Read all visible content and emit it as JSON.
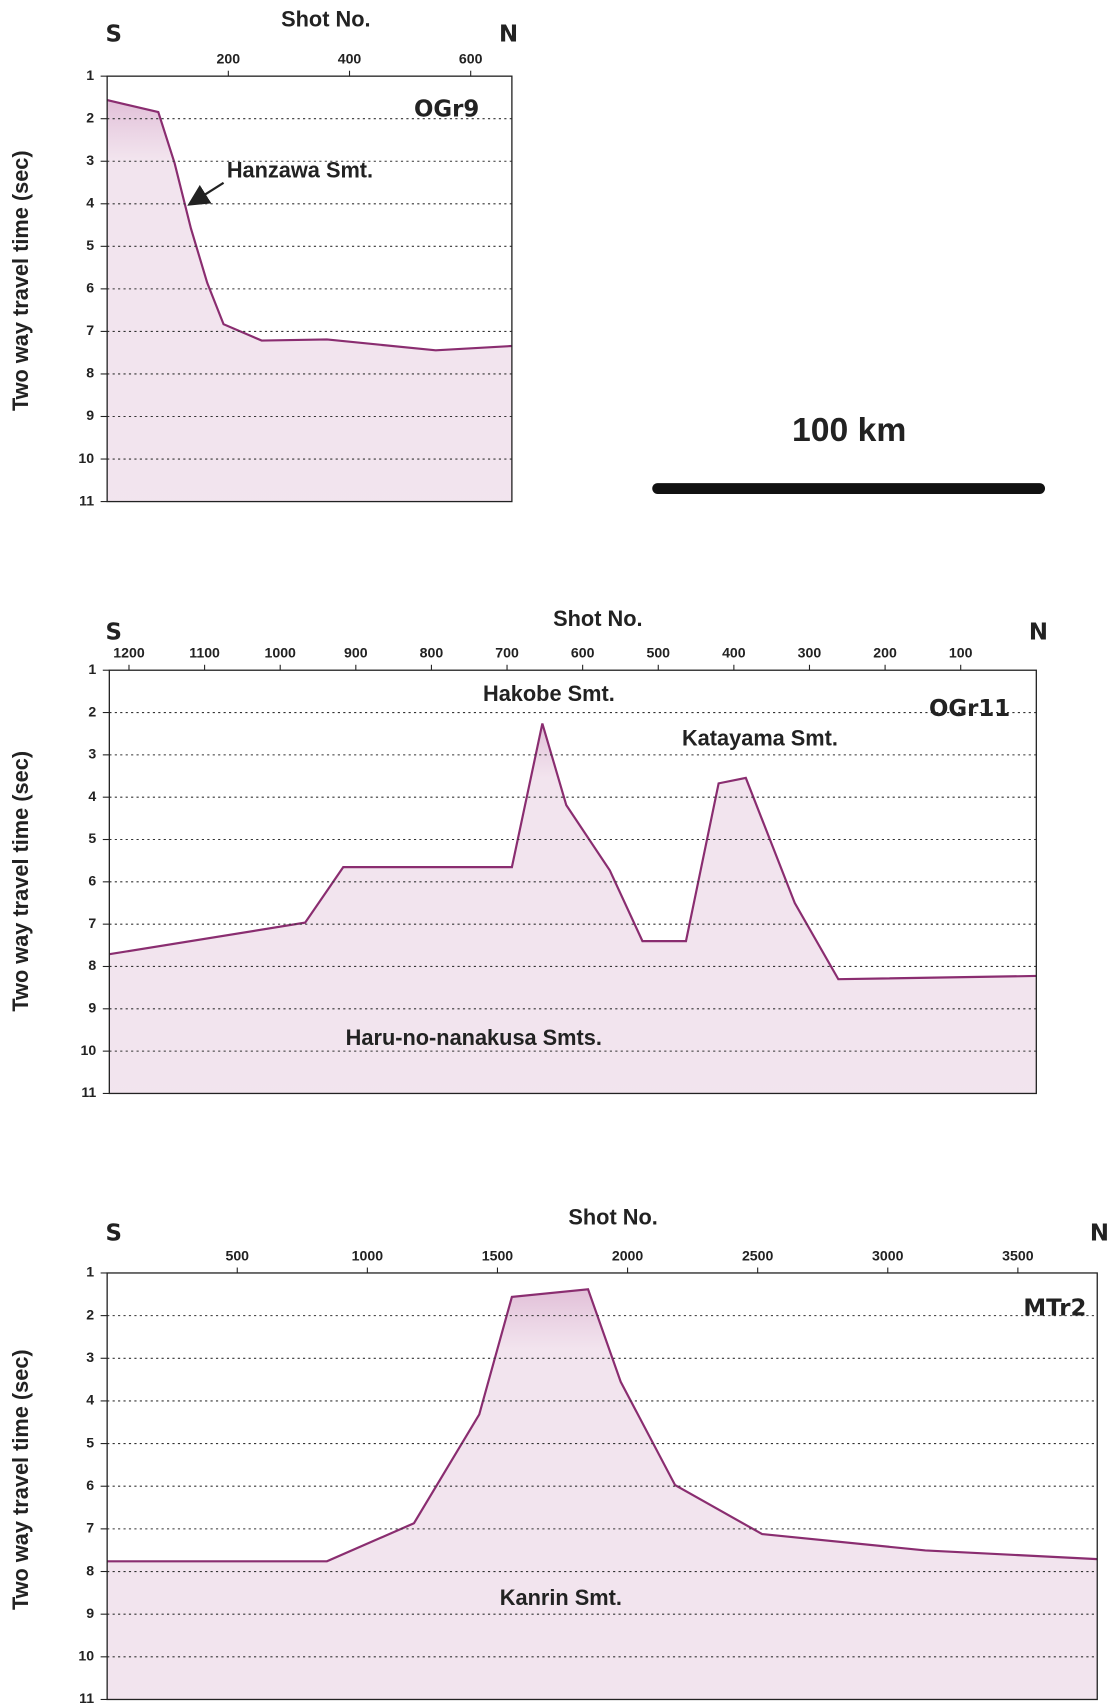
{
  "chart_data": [
    {
      "type": "profile",
      "x_label": "Shot No.",
      "y_label": "Two way travel time (sec)",
      "left_label": "S",
      "right_label": "N",
      "line_name": "OGr9",
      "xlim": [
        0,
        668
      ],
      "xticks": [
        200,
        400,
        600
      ],
      "ylim": [
        11,
        1
      ],
      "yticks": [
        1,
        2,
        3,
        4,
        5,
        6,
        7,
        8,
        9,
        10,
        11
      ],
      "grid": true,
      "annotations": [
        "Hanzawa Smt."
      ]
    },
    {
      "type": "profile",
      "x_label": "Shot No.",
      "y_label": "Two way travel time (sec)",
      "left_label": "S",
      "right_label": "N",
      "line_name": "OGr11",
      "xlim": [
        1226,
        0
      ],
      "xticks": [
        1200,
        1100,
        1000,
        900,
        800,
        700,
        600,
        500,
        400,
        300,
        200,
        100
      ],
      "ylim": [
        11,
        1
      ],
      "yticks": [
        1,
        2,
        3,
        4,
        5,
        6,
        7,
        8,
        9,
        10,
        11
      ],
      "grid": true,
      "annotations": [
        "Hakobe Smt.",
        "Katayama Smt.",
        "Haru-no-nanakusa Smts."
      ]
    },
    {
      "type": "profile",
      "x_label": "Shot No.",
      "y_label": "Two way travel time (sec)",
      "left_label": "S",
      "right_label": "N",
      "line_name": "MTr2",
      "xlim": [
        0,
        3805
      ],
      "xticks": [
        500,
        1000,
        1500,
        2000,
        2500,
        3000,
        3500
      ],
      "ylim": [
        11,
        1
      ],
      "yticks": [
        1,
        2,
        3,
        4,
        5,
        6,
        7,
        8,
        9,
        10,
        11
      ],
      "grid": true,
      "annotations": [
        "Kanrin Smt."
      ]
    }
  ],
  "scale_bar": {
    "label": "100 km"
  }
}
